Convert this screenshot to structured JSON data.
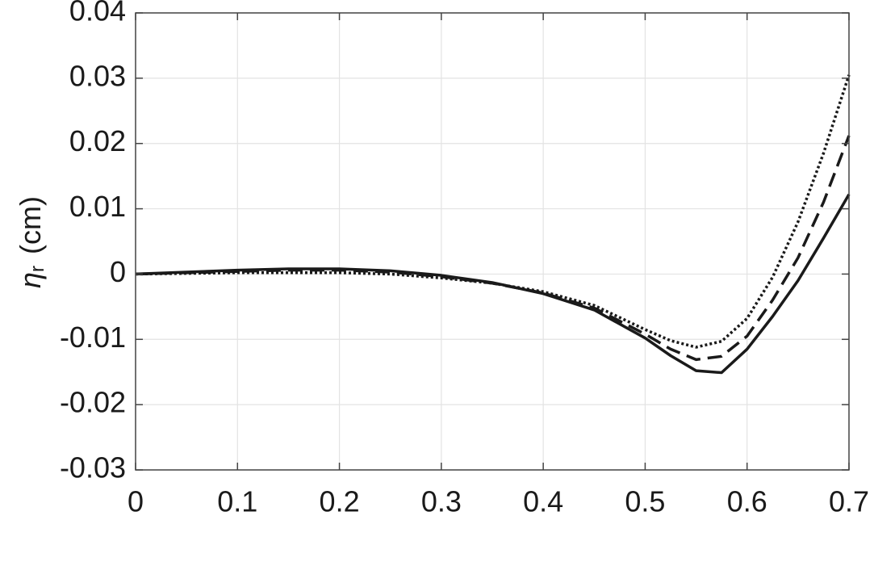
{
  "chart_data": {
    "type": "line",
    "ylabel": {
      "symbol": "η",
      "subscript": "r",
      "unit": "(cm)"
    },
    "x": [
      0,
      0.05,
      0.1,
      0.15,
      0.2,
      0.25,
      0.3,
      0.35,
      0.4,
      0.45,
      0.5,
      0.525,
      0.55,
      0.575,
      0.6,
      0.625,
      0.65,
      0.675,
      0.7
    ],
    "series": [
      {
        "color": "#1a1a1a",
        "dash": "solid",
        "values": [
          0,
          0.0003,
          0.0006,
          0.0008,
          0.0008,
          0.0005,
          -0.0002,
          -0.0013,
          -0.003,
          -0.0055,
          -0.0098,
          -0.0125,
          -0.0148,
          -0.0151,
          -0.0115,
          -0.0065,
          -0.001,
          0.0055,
          0.0122
        ]
      },
      {
        "color": "#1a1a1a",
        "dash": "dashed",
        "values": [
          0,
          0.0002,
          0.0004,
          0.0006,
          0.0006,
          0.0003,
          -0.0004,
          -0.0014,
          -0.0029,
          -0.0052,
          -0.0092,
          -0.0115,
          -0.0131,
          -0.0126,
          -0.0095,
          -0.004,
          0.0025,
          0.011,
          0.0212
        ]
      },
      {
        "color": "#1a1a1a",
        "dash": "dotted",
        "values": [
          0,
          0.0001,
          0.0002,
          0.0002,
          0.0002,
          0.0,
          -0.0006,
          -0.0014,
          -0.0027,
          -0.0048,
          -0.0085,
          -0.0102,
          -0.0112,
          -0.0103,
          -0.0068,
          -0.0005,
          0.008,
          0.0185,
          0.0305
        ]
      }
    ],
    "xlim": [
      0,
      0.7
    ],
    "xticks": [
      0,
      0.1,
      0.2,
      0.3,
      0.4,
      0.5,
      0.6,
      0.7
    ],
    "ylim": [
      -0.03,
      0.04
    ],
    "yticks": [
      -0.03,
      -0.02,
      -0.01,
      0,
      0.01,
      0.02,
      0.03,
      0.04
    ],
    "grid": true
  }
}
